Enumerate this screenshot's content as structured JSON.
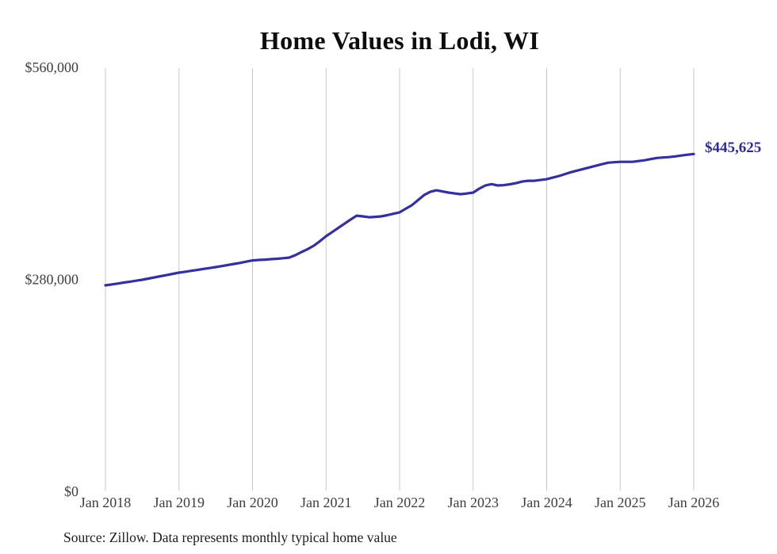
{
  "title": "Home Values in Lodi, WI",
  "end_label": "$445,625",
  "source_note": "Source: Zillow. Data represents monthly typical home value",
  "colors": {
    "accent": "#2e2a99",
    "line": "#34309e",
    "gridline": "#c9c9c9",
    "axis_text": "#3e3e3e",
    "title_text": "#0d0d0d",
    "source_text": "#1c1c1c",
    "background": "#ffffff"
  },
  "chart_data": {
    "type": "line",
    "title": "Home Values in Lodi, WI",
    "xlabel": "",
    "ylabel": "",
    "x_ticks": [
      "Jan 2018",
      "Jan 2019",
      "Jan 2020",
      "Jan 2021",
      "Jan 2022",
      "Jan 2023",
      "Jan 2024",
      "Jan 2025",
      "Jan 2026"
    ],
    "y_ticks": [
      {
        "label": "$0",
        "value": 0
      },
      {
        "label": "$280,000",
        "value": 280000
      },
      {
        "label": "$560,000",
        "value": 560000
      }
    ],
    "ylim": [
      0,
      560000
    ],
    "grid": "vertical",
    "legend": "none",
    "frequency": "monthly",
    "x_range": [
      "Jan 2018",
      "Jan 2026"
    ],
    "last_value_annotation": "$445,625",
    "series": [
      {
        "name": "Typical home value (Lodi, WI)",
        "color": "#34309e",
        "values": [
          272100,
          273300,
          274500,
          275800,
          277000,
          278200,
          279500,
          281000,
          282600,
          284200,
          285700,
          287300,
          288900,
          290100,
          291300,
          292500,
          293800,
          295000,
          296200,
          297600,
          299000,
          300400,
          301800,
          303400,
          305000,
          305600,
          306100,
          306700,
          307200,
          308000,
          308800,
          312000,
          316100,
          320000,
          324500,
          330500,
          337000,
          342500,
          348000,
          353500,
          359000,
          364200,
          363200,
          362100,
          362600,
          363200,
          364800,
          366700,
          368600,
          373300,
          378000,
          384700,
          391400,
          395600,
          397700,
          396100,
          394600,
          393500,
          392500,
          393500,
          394600,
          399800,
          404000,
          405800,
          404000,
          404500,
          405600,
          407100,
          409200,
          410200,
          410200,
          411300,
          412300,
          414400,
          416500,
          419100,
          421600,
          423700,
          425800,
          427900,
          430000,
          432100,
          434100,
          434700,
          435200,
          435200,
          435200,
          436300,
          437300,
          438900,
          440400,
          441000,
          441500,
          442500,
          443600,
          444600,
          445625
        ]
      }
    ]
  }
}
